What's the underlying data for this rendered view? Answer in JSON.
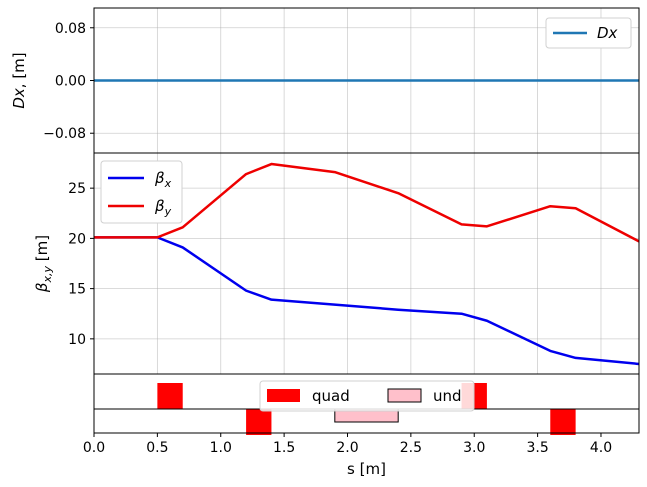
{
  "chart_data": [
    {
      "type": "line",
      "panel": "dispersion",
      "ylabel_main": "Dx",
      "ylabel_unit": ", [m]",
      "xlim": [
        0.0,
        4.3
      ],
      "ylim": [
        -0.11,
        0.11
      ],
      "yticks": [
        "0.08",
        "0.00",
        "−0.08"
      ],
      "ytick_values": [
        0.08,
        0.0,
        -0.08
      ],
      "grid": true,
      "legend_placement": "top-right",
      "series": [
        {
          "name": "Dx",
          "color": "#1f77b4",
          "x": [
            0.0,
            4.3
          ],
          "y": [
            0.0,
            0.0
          ]
        }
      ]
    },
    {
      "type": "line",
      "panel": "beta",
      "ylabel_main": "β",
      "ylabel_sub": "x,y",
      "ylabel_unit": " [m]",
      "xlim": [
        0.0,
        4.3
      ],
      "ylim": [
        6.5,
        28.5
      ],
      "yticks": [
        "25",
        "20",
        "15",
        "10"
      ],
      "ytick_values": [
        25,
        20,
        15,
        10
      ],
      "grid": true,
      "legend_placement": "top-left",
      "series": [
        {
          "name": "β",
          "sub": "x",
          "color": "#0000ee",
          "x": [
            0.0,
            0.5,
            0.7,
            1.2,
            1.4,
            2.4,
            2.9,
            3.1,
            3.6,
            3.8,
            4.3
          ],
          "y": [
            20.1,
            20.1,
            19.1,
            14.8,
            13.9,
            12.9,
            12.5,
            11.8,
            8.8,
            8.1,
            7.5
          ]
        },
        {
          "name": "β",
          "sub": "y",
          "color": "#ee0000",
          "x": [
            0.0,
            0.5,
            0.7,
            1.2,
            1.4,
            1.9,
            2.4,
            2.9,
            3.1,
            3.6,
            3.8,
            4.3
          ],
          "y": [
            20.1,
            20.1,
            21.1,
            26.4,
            27.4,
            26.6,
            24.5,
            21.4,
            21.2,
            23.2,
            23.0,
            19.7
          ]
        }
      ]
    },
    {
      "type": "bar",
      "panel": "lattice",
      "xlabel": "s [m]",
      "xlim": [
        0.0,
        4.3
      ],
      "xticks": [
        "0.0",
        "0.5",
        "1.0",
        "1.5",
        "2.0",
        "2.5",
        "3.0",
        "3.5",
        "4.0"
      ],
      "xtick_values": [
        0.0,
        0.5,
        1.0,
        1.5,
        2.0,
        2.5,
        3.0,
        3.5,
        4.0
      ],
      "legend_placement": "top-center",
      "legend": [
        {
          "name": "quad",
          "color": "#ff0000"
        },
        {
          "name": "und",
          "color": "#ffc0cb"
        }
      ],
      "elements": [
        {
          "kind": "quad",
          "s_start": 0.5,
          "s_end": 0.7,
          "strength": 1
        },
        {
          "kind": "quad",
          "s_start": 1.2,
          "s_end": 1.4,
          "strength": -1
        },
        {
          "kind": "und",
          "s_start": 1.9,
          "s_end": 2.4,
          "strength": -0.5
        },
        {
          "kind": "quad",
          "s_start": 2.9,
          "s_end": 3.1,
          "strength": 1
        },
        {
          "kind": "quad",
          "s_start": 3.6,
          "s_end": 3.8,
          "strength": -1
        }
      ]
    }
  ]
}
